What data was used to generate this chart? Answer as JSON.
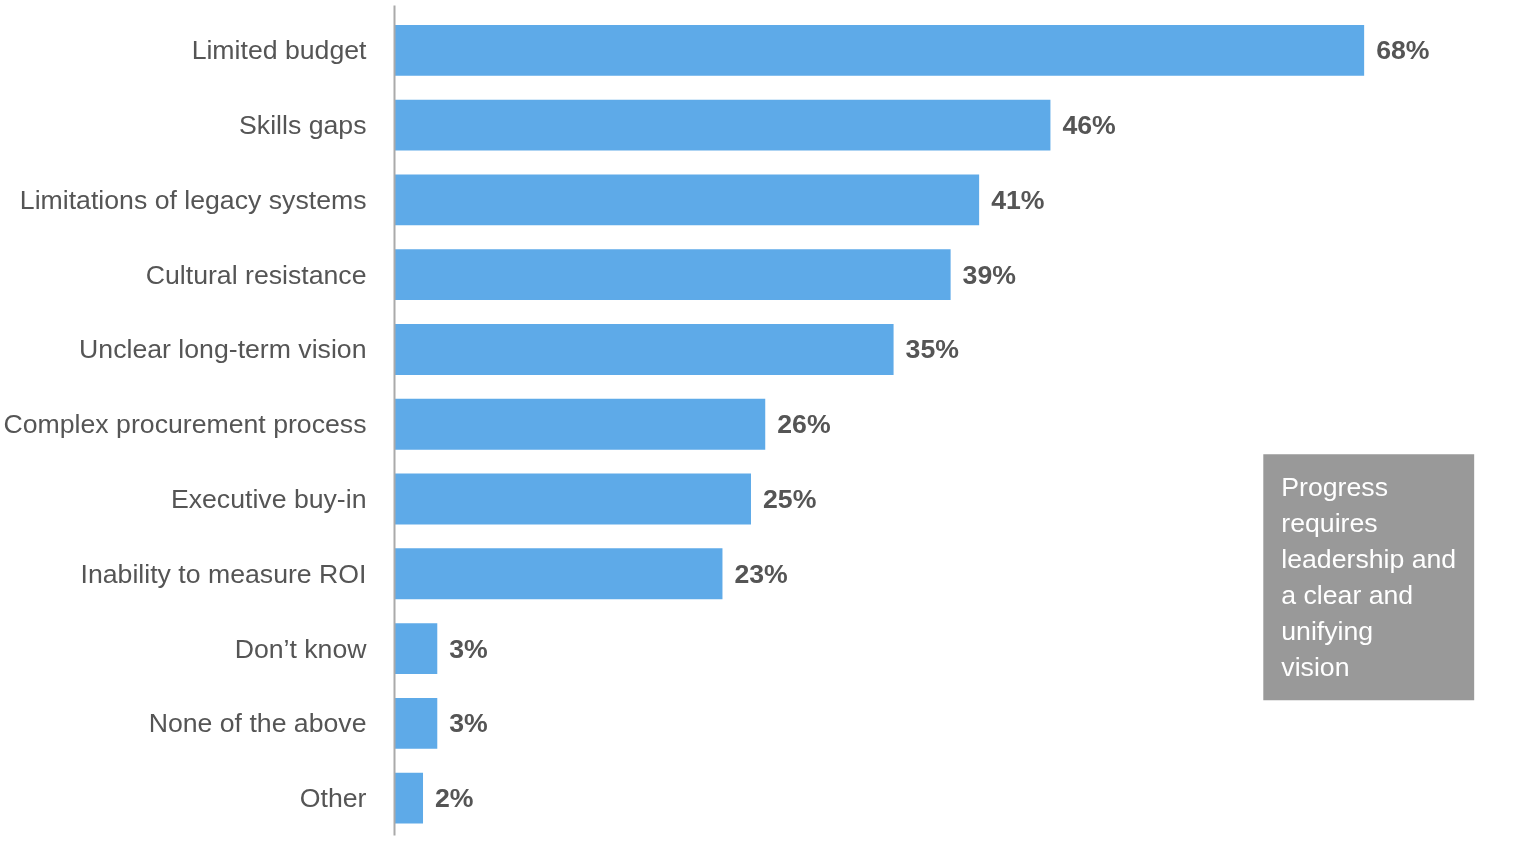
{
  "chart_data": {
    "type": "bar",
    "orientation": "horizontal",
    "categories": [
      "Limited budget",
      "Skills gaps",
      "Limitations of legacy systems",
      "Cultural resistance",
      "Unclear long-term vision",
      "Complex procurement process",
      "Executive buy-in",
      "Inability to measure ROI",
      "Don’t know",
      "None of the above",
      "Other"
    ],
    "values": [
      68,
      46,
      41,
      39,
      35,
      26,
      25,
      23,
      3,
      3,
      2
    ],
    "value_labels": [
      "68%",
      "46%",
      "41%",
      "39%",
      "35%",
      "26%",
      "25%",
      "23%",
      "3%",
      "3%",
      "2%"
    ],
    "color": "#5eaae8",
    "tick_labels": "y",
    "annotations": [
      "Progress requires leadership and a clear and unifying vision"
    ]
  }
}
